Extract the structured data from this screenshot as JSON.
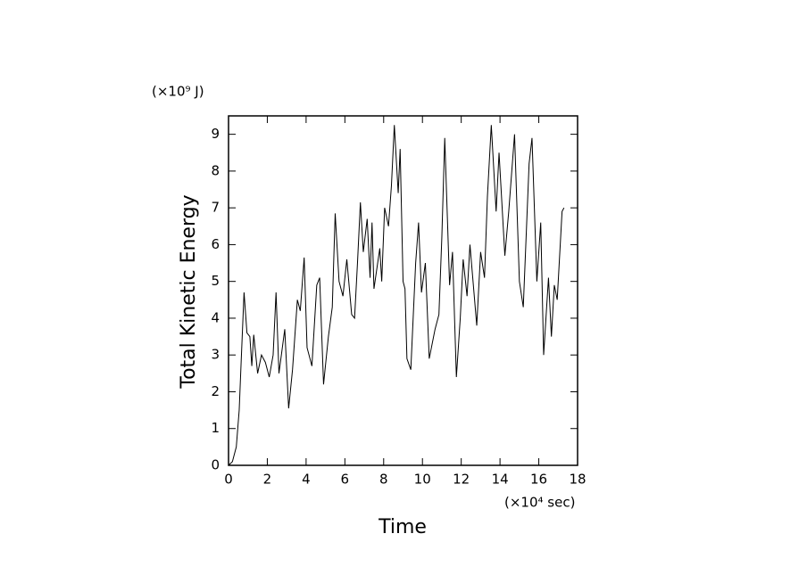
{
  "chart_data": {
    "type": "line",
    "y_unit": "(×10⁹ J)",
    "x_unit": "(×10⁴ sec)",
    "ylabel": "Total Kinetic Energy",
    "xlabel": "Time",
    "xlim": [
      0,
      18
    ],
    "ylim": [
      0,
      9.5
    ],
    "xticks": [
      0,
      2,
      4,
      6,
      8,
      10,
      12,
      14,
      16,
      18
    ],
    "yticks": [
      0,
      1,
      2,
      3,
      4,
      5,
      6,
      7,
      8,
      9
    ],
    "series": [
      {
        "color": "#000000",
        "x": [
          0,
          0.2,
          0.4,
          0.55,
          0.65,
          0.8,
          0.95,
          1.1,
          1.2,
          1.3,
          1.5,
          1.7,
          1.9,
          2.1,
          2.3,
          2.45,
          2.6,
          2.9,
          3.1,
          3.3,
          3.55,
          3.7,
          3.9,
          4.05,
          4.3,
          4.55,
          4.7,
          4.9,
          5.15,
          5.35,
          5.5,
          5.7,
          5.9,
          6.1,
          6.35,
          6.5,
          6.65,
          6.8,
          6.95,
          7.15,
          7.3,
          7.4,
          7.5,
          7.8,
          7.9,
          8.05,
          8.25,
          8.4,
          8.55,
          8.75,
          8.85,
          9.0,
          9.1,
          9.2,
          9.4,
          9.65,
          9.8,
          9.95,
          10.15,
          10.35,
          10.65,
          10.85,
          11.0,
          11.15,
          11.4,
          11.55,
          11.75,
          11.95,
          12.1,
          12.3,
          12.45,
          12.8,
          13.0,
          13.2,
          13.35,
          13.55,
          13.8,
          13.95,
          14.25,
          14.45,
          14.75,
          15.0,
          15.2,
          15.5,
          15.65,
          15.9,
          16.1,
          16.25,
          16.5,
          16.65,
          16.8,
          16.95,
          17.2,
          17.3
        ],
        "values": [
          0,
          0.1,
          0.5,
          1.5,
          2.8,
          4.7,
          3.6,
          3.5,
          2.7,
          3.55,
          2.5,
          3.0,
          2.8,
          2.4,
          3.0,
          4.7,
          2.5,
          3.7,
          1.55,
          2.6,
          4.5,
          4.2,
          5.65,
          3.2,
          2.7,
          4.9,
          5.1,
          2.2,
          3.5,
          4.3,
          6.85,
          5.0,
          4.6,
          5.6,
          4.1,
          4.0,
          5.5,
          7.15,
          5.8,
          6.7,
          5.1,
          6.6,
          4.8,
          5.9,
          5.0,
          7.0,
          6.5,
          7.6,
          9.25,
          7.4,
          8.6,
          5.0,
          4.8,
          2.9,
          2.6,
          5.5,
          6.6,
          4.7,
          5.5,
          2.9,
          3.7,
          4.1,
          6.2,
          8.9,
          4.9,
          5.8,
          2.4,
          4.0,
          5.6,
          4.6,
          6.0,
          3.8,
          5.8,
          5.1,
          7.3,
          9.25,
          6.9,
          8.5,
          5.7,
          6.9,
          9.0,
          5.0,
          4.3,
          8.2,
          8.9,
          5.0,
          6.6,
          3.0,
          5.1,
          3.5,
          4.9,
          4.5,
          6.9,
          7.0
        ]
      }
    ]
  }
}
